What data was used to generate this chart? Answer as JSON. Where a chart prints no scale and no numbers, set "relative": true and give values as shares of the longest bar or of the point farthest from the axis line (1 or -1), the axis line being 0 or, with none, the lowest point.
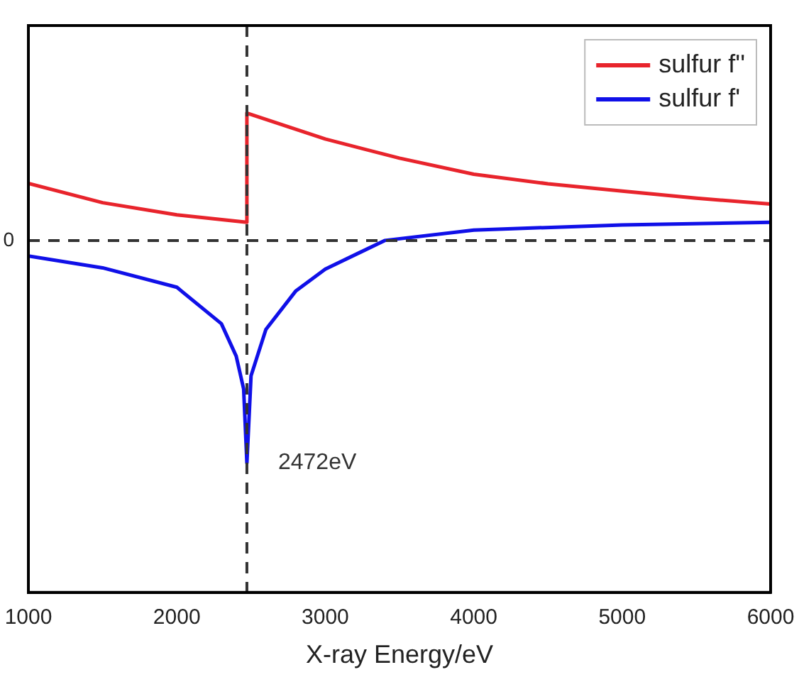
{
  "chart_data": {
    "type": "line",
    "xlabel": "X-ray Energy/eV",
    "relative": true,
    "xlim": [
      1000,
      6000
    ],
    "xticks": [
      1000,
      2000,
      3000,
      4000,
      5000,
      6000
    ],
    "legend": "top right",
    "grid": false,
    "marker": "none",
    "line_style": "solid",
    "series": [
      {
        "name": "sulfur f''",
        "color": "#e8242c",
        "x": [
          1000,
          1500,
          2000,
          2472,
          2472,
          3000,
          3500,
          4000,
          4500,
          5000,
          5500,
          6000
        ],
        "values": [
          0.257,
          0.17,
          0.115,
          0.082,
          0.573,
          0.456,
          0.37,
          0.298,
          0.255,
          0.222,
          0.19,
          0.164
        ]
      },
      {
        "name": "sulfur f'",
        "color": "#1010e8",
        "x": [
          1000,
          1500,
          2000,
          2300,
          2400,
          2450,
          2472,
          2500,
          2600,
          2800,
          3000,
          3400,
          4000,
          5000,
          6000
        ],
        "values": [
          -0.07,
          -0.123,
          -0.21,
          -0.374,
          -0.52,
          -0.667,
          -1,
          -0.608,
          -0.4,
          -0.228,
          -0.129,
          0,
          0.047,
          0.07,
          0.082
        ]
      }
    ],
    "ref_lines": [
      {
        "axis": "x",
        "value": 2472,
        "line_style": "dashed",
        "color": "#333333"
      },
      {
        "axis": "y",
        "value": 0,
        "label": "0",
        "line_style": "dashed",
        "color": "#333333"
      }
    ],
    "annotations": [
      {
        "text": "2472eV",
        "x": 2472,
        "y": -1
      }
    ]
  }
}
